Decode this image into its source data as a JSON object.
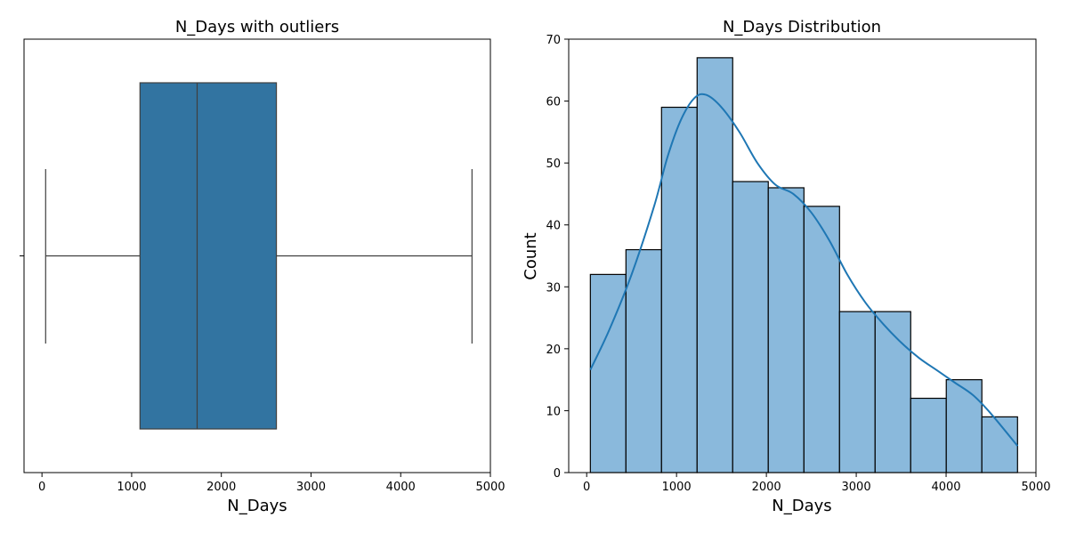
{
  "colors": {
    "box_fill": "#3274a1",
    "box_edge": "#3f3f3f",
    "hist_fill": "#8ab9dc",
    "hist_edge": "#000000",
    "kde_line": "#1f77b4",
    "axes": "#000000"
  },
  "chart_data": [
    {
      "type": "box",
      "title": "N_Days with outliers",
      "xlabel": "N_Days",
      "ylabel": "",
      "xlim": [
        -200,
        5000
      ],
      "xticks": [
        0,
        1000,
        2000,
        3000,
        4000,
        5000
      ],
      "grid": false,
      "stats": {
        "whisker_low": 41,
        "q1": 1093,
        "median": 1730,
        "q3": 2614,
        "whisker_high": 4795
      },
      "outliers": []
    },
    {
      "type": "histogram",
      "title": "N_Days Distribution",
      "xlabel": "N_Days",
      "ylabel": "Count",
      "xlim": [
        -200,
        5000
      ],
      "ylim": [
        0,
        70
      ],
      "xticks": [
        0,
        1000,
        2000,
        3000,
        4000,
        5000
      ],
      "yticks": [
        0,
        10,
        20,
        30,
        40,
        50,
        60,
        70
      ],
      "grid": false,
      "bin_edges": [
        41,
        437,
        833,
        1229,
        1625,
        2021,
        2418,
        2814,
        3210,
        3606,
        4002,
        4398,
        4795
      ],
      "counts": [
        32,
        36,
        59,
        67,
        47,
        46,
        43,
        26,
        26,
        12,
        15,
        9
      ],
      "kde": {
        "x": [
          41,
          250,
          500,
          750,
          900,
          1050,
          1200,
          1330,
          1500,
          1700,
          1900,
          2100,
          2300,
          2500,
          2700,
          2900,
          3100,
          3300,
          3500,
          3700,
          3900,
          4100,
          4300,
          4500,
          4795
        ],
        "y": [
          16.6,
          23,
          32,
          43,
          51,
          57,
          60.5,
          61,
          59,
          55,
          50,
          46.5,
          45,
          42,
          37.5,
          32,
          27.5,
          24,
          21,
          18.5,
          16.5,
          14.5,
          12.5,
          9.5,
          4.3
        ]
      }
    }
  ]
}
